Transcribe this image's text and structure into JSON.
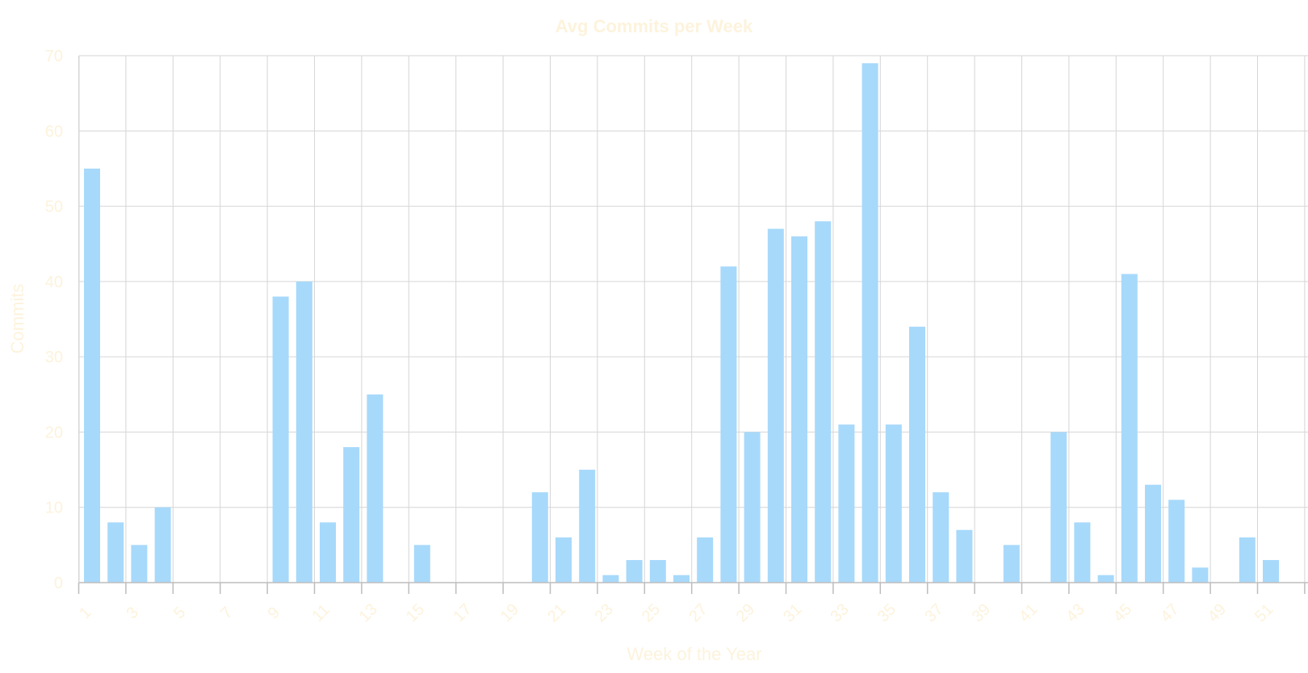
{
  "colors": {
    "bar": "#a7d9fb",
    "grid": "#d6d6d6",
    "text": "#fdf3dc",
    "background": "#ffffff"
  },
  "chart_data": {
    "type": "bar",
    "title": "Avg Commits per Week",
    "xlabel": "Week of the Year",
    "ylabel": "Commits",
    "ylim": [
      0,
      70
    ],
    "yticks": [
      0,
      10,
      20,
      30,
      40,
      50,
      60,
      70
    ],
    "grid": true,
    "legend": "none",
    "categories": [
      1,
      2,
      3,
      4,
      5,
      6,
      7,
      8,
      9,
      10,
      11,
      12,
      13,
      14,
      15,
      16,
      17,
      18,
      19,
      20,
      21,
      22,
      23,
      24,
      25,
      26,
      27,
      28,
      29,
      30,
      31,
      32,
      33,
      34,
      35,
      36,
      37,
      38,
      39,
      40,
      41,
      42,
      43,
      44,
      45,
      46,
      47,
      48,
      49,
      50,
      51,
      52
    ],
    "x_tick_labels": [
      "1",
      "3",
      "5",
      "7",
      "9",
      "11",
      "13",
      "15",
      "17",
      "19",
      "21",
      "23",
      "25",
      "27",
      "29",
      "31",
      "33",
      "35",
      "37",
      "39",
      "41",
      "43",
      "45",
      "47",
      "49",
      "51"
    ],
    "values": [
      55,
      8,
      5,
      10,
      0,
      0,
      0,
      0,
      38,
      40,
      8,
      18,
      25,
      0,
      5,
      0,
      0,
      0,
      0,
      12,
      6,
      15,
      1,
      3,
      3,
      1,
      6,
      42,
      20,
      47,
      46,
      48,
      21,
      69,
      21,
      34,
      12,
      7,
      0,
      5,
      0,
      20,
      8,
      1,
      41,
      13,
      11,
      2,
      0,
      6,
      3,
      0
    ]
  }
}
